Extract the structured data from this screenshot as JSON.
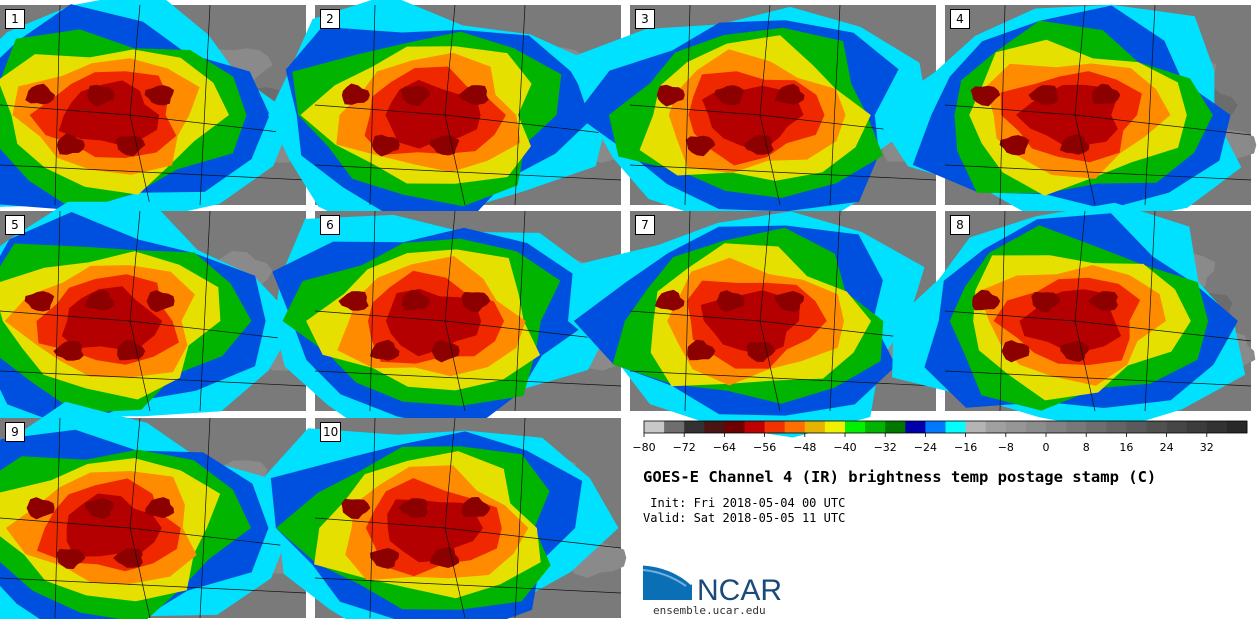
{
  "panels": [
    {
      "label": "1"
    },
    {
      "label": "2"
    },
    {
      "label": "3"
    },
    {
      "label": "4"
    },
    {
      "label": "5"
    },
    {
      "label": "6"
    },
    {
      "label": "7"
    },
    {
      "label": "8"
    },
    {
      "label": "9"
    },
    {
      "label": "10"
    }
  ],
  "colorbar": {
    "ticks": [
      "−80",
      "−72",
      "−64",
      "−56",
      "−48",
      "−40",
      "−32",
      "−24",
      "−16",
      "−8",
      "0",
      "8",
      "16",
      "24",
      "32"
    ],
    "colors": [
      "#c8c8c8",
      "#6e6e6e",
      "#323232",
      "#4b1414",
      "#6e0000",
      "#be0000",
      "#f03200",
      "#ff6e00",
      "#e6b400",
      "#f0f000",
      "#00f000",
      "#00b400",
      "#007800",
      "#0000aa",
      "#0078ff",
      "#00ffff",
      "#b4b4b4",
      "#a0a0a0",
      "#969696",
      "#8c8c8c",
      "#828282",
      "#787878",
      "#6e6e6e",
      "#646464",
      "#5a5a5a",
      "#505050",
      "#464646",
      "#3c3c3c",
      "#323232",
      "#282828"
    ]
  },
  "title": "GOES-E Channel 4 (IR) brightness temp postage stamp (C)",
  "init": " Init: Fri 2018-05-04 00 UTC",
  "valid": "Valid: Sat 2018-05-05 11 UTC",
  "logo": {
    "text": "NCAR",
    "subtitle": "ensemble.ucar.edu"
  }
}
